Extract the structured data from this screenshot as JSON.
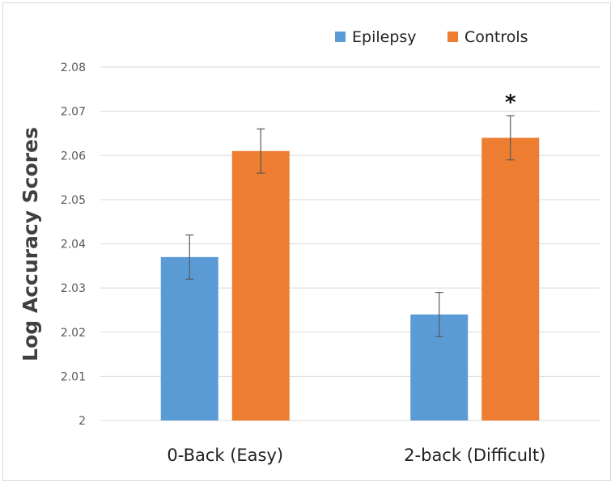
{
  "chart_data": {
    "type": "bar",
    "title": "",
    "xlabel": "",
    "ylabel": "Log Accuracy Scores",
    "categories": [
      "0-Back (Easy)",
      "2-back (Difficult)"
    ],
    "series": [
      {
        "name": "Epilepsy",
        "color": "#5b9bd5",
        "values": [
          2.037,
          2.024
        ],
        "errors": [
          0.005,
          0.005
        ]
      },
      {
        "name": "Controls",
        "color": "#ed7d31",
        "values": [
          2.061,
          2.064
        ],
        "errors": [
          0.005,
          0.005
        ]
      }
    ],
    "ylim": [
      2,
      2.08
    ],
    "yticks": [
      "2",
      "2.01",
      "2.02",
      "2.03",
      "2.04",
      "2.05",
      "2.06",
      "2.07",
      "2.08"
    ],
    "grid": true,
    "legend_position": "top-right",
    "annotations": [
      {
        "text": "*",
        "series": "Controls",
        "category": "2-back (Difficult)"
      }
    ]
  }
}
